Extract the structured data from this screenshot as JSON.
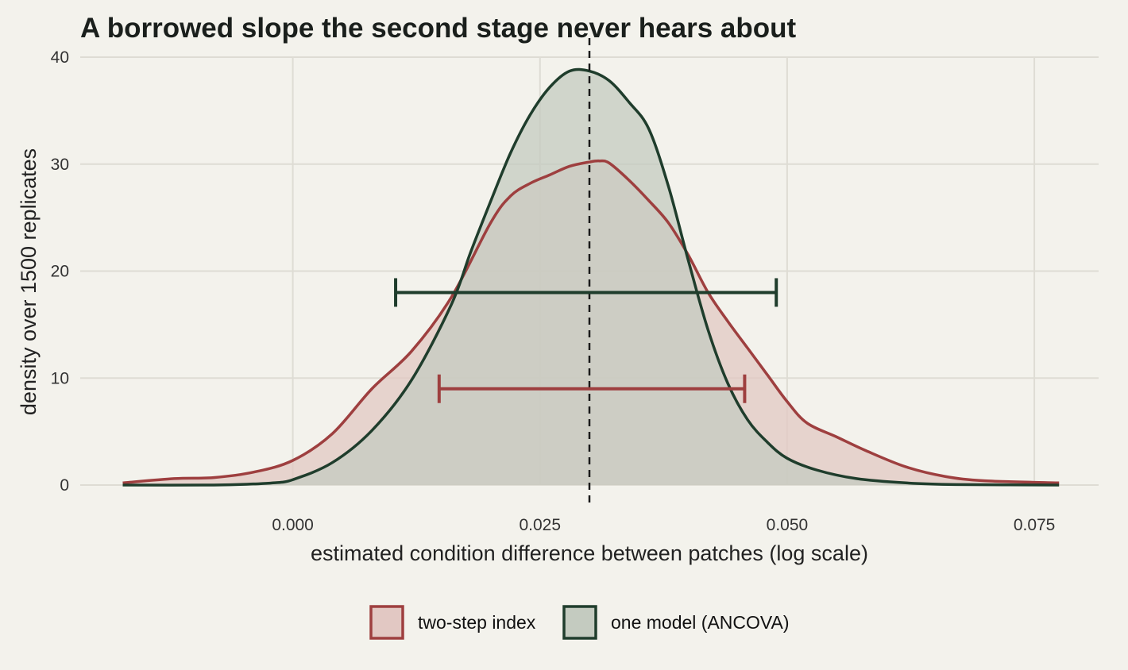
{
  "chart_data": {
    "type": "area",
    "title": "A borrowed slope the second stage never hears about",
    "xlabel": "estimated condition difference between patches (log scale)",
    "ylabel": "density over 1500 replicates",
    "xlim": [
      -0.0215,
      0.0815
    ],
    "ylim": [
      0,
      40
    ],
    "x_ticks": [
      0,
      0.025,
      0.05,
      0.075
    ],
    "x_tick_labels": [
      "0.000",
      "0.025",
      "0.050",
      "0.075"
    ],
    "y_ticks": [
      0,
      10,
      20,
      30,
      40
    ],
    "y_tick_labels": [
      "0",
      "10",
      "20",
      "30",
      "40"
    ],
    "grid": true,
    "legend_position": "bottom",
    "reference_line": {
      "x": 0.03,
      "style": "dashed",
      "color": "#1a1a1a"
    },
    "series": [
      {
        "name": "two-step index",
        "color": "#9e3f3f",
        "fill": "#e2c8c3",
        "x": [
          -0.0172,
          -0.012,
          -0.008,
          -0.004,
          0,
          0.004,
          0.008,
          0.012,
          0.016,
          0.02,
          0.022,
          0.024,
          0.026,
          0.028,
          0.03,
          0.031,
          0.032,
          0.034,
          0.036,
          0.038,
          0.04,
          0.042,
          0.044,
          0.046,
          0.048,
          0.05,
          0.052,
          0.055,
          0.058,
          0.062,
          0.066,
          0.07,
          0.0775
        ],
        "y": [
          0.2,
          0.6,
          0.7,
          1.2,
          2.3,
          4.8,
          9.0,
          12.5,
          17.5,
          24.5,
          27.0,
          28.2,
          29.0,
          29.8,
          30.2,
          30.3,
          30.1,
          28.5,
          26.6,
          24.5,
          21.5,
          18.0,
          15.3,
          12.8,
          10.3,
          7.8,
          5.8,
          4.5,
          3.2,
          1.7,
          0.8,
          0.4,
          0.2
        ]
      },
      {
        "name": "one model (ANCOVA)",
        "color": "#1f3d2c",
        "fill": "#c4cbc0",
        "x": [
          -0.0172,
          -0.008,
          -0.004,
          -0.002,
          0,
          0.004,
          0.008,
          0.012,
          0.016,
          0.018,
          0.02,
          0.022,
          0.024,
          0.026,
          0.028,
          0.03,
          0.032,
          0.034,
          0.036,
          0.038,
          0.04,
          0.042,
          0.044,
          0.046,
          0.048,
          0.05,
          0.053,
          0.057,
          0.062,
          0.067,
          0.0775
        ],
        "y": [
          0.0,
          0.0,
          0.1,
          0.2,
          0.5,
          2.1,
          5.1,
          9.8,
          16.8,
          21.8,
          26.5,
          31.0,
          34.6,
          37.2,
          38.7,
          38.7,
          37.8,
          35.8,
          33.3,
          27.9,
          21.0,
          14.5,
          9.5,
          6.1,
          4.0,
          2.5,
          1.4,
          0.6,
          0.2,
          0.05,
          0.0
        ]
      }
    ],
    "intervals": [
      {
        "series": "one model (ANCOVA)",
        "low": 0.0104,
        "high": 0.0489,
        "y": 18.0,
        "color": "#1f3d2c"
      },
      {
        "series": "two-step index",
        "low": 0.0148,
        "high": 0.0457,
        "y": 9.0,
        "color": "#9e3f3f"
      }
    ]
  }
}
